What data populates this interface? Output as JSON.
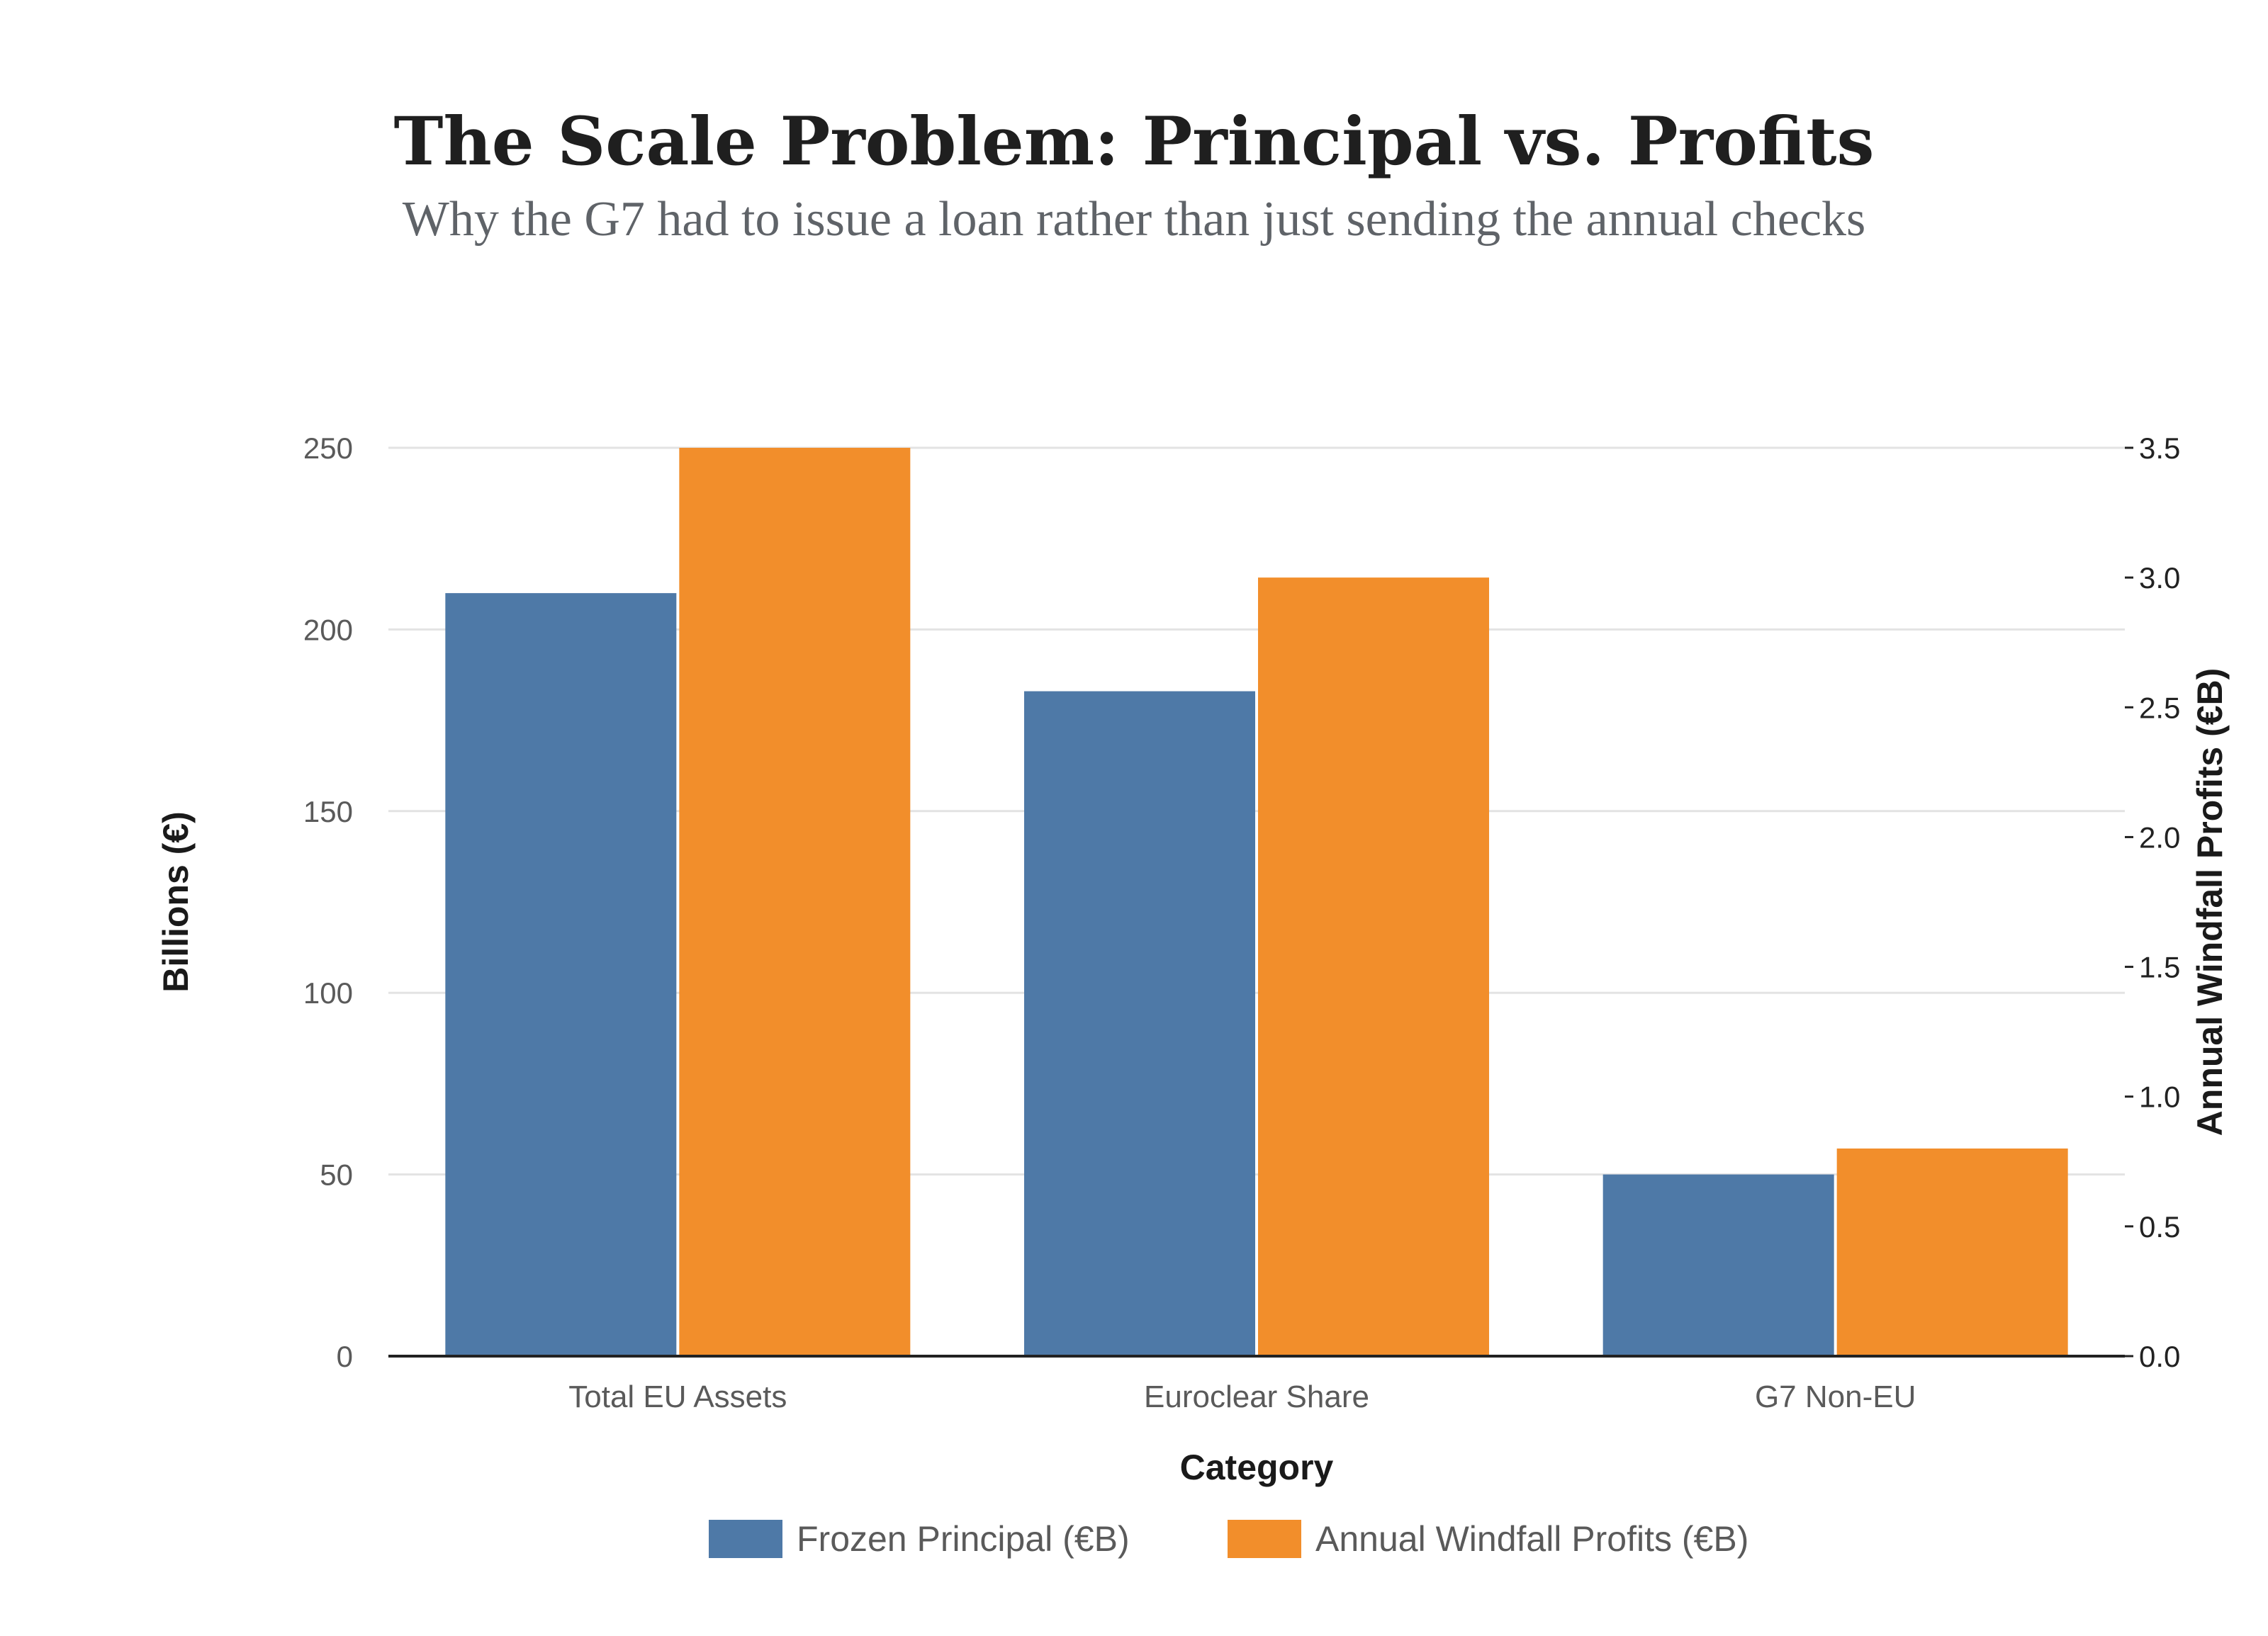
{
  "title": "The Scale Problem: Principal vs. Profits",
  "subtitle": "Why the G7 had to issue a loan rather than just sending the annual checks",
  "colors": {
    "principal": "#4e79a7",
    "profits": "#f28e2b",
    "gridline": "#e3e3e3"
  },
  "chart_data": {
    "type": "bar",
    "title": "The Scale Problem: Principal vs. Profits",
    "subtitle": "Why the G7 had to issue a loan rather than just sending the annual checks",
    "xlabel": "Category",
    "ylabel": "Billions (€)",
    "y2label": "Annual Windfall Profits (€B)",
    "categories": [
      "Total EU Assets",
      "Euroclear Share",
      "G7 Non-EU"
    ],
    "series": [
      {
        "name": "Frozen Principal (€B)",
        "axis": "left",
        "values": [
          210,
          183,
          50
        ]
      },
      {
        "name": "Annual Windfall Profits (€B)",
        "axis": "right",
        "values": [
          3.5,
          3.0,
          0.8
        ]
      }
    ],
    "ylim": [
      0,
      250
    ],
    "y2lim": [
      0,
      3.5
    ],
    "yticks": [
      0,
      50,
      100,
      150,
      200,
      250
    ],
    "yticks_labels": [
      "0",
      "50",
      "100",
      "150",
      "200",
      "250"
    ],
    "y2ticks": [
      0,
      0.5,
      1.0,
      1.5,
      2.0,
      2.5,
      3.0,
      3.5
    ],
    "y2ticks_labels": [
      "0.0",
      "0.5",
      "1.0",
      "1.5",
      "2.0",
      "2.5",
      "3.0",
      "3.5"
    ],
    "grid": true,
    "legend": "bottom"
  }
}
